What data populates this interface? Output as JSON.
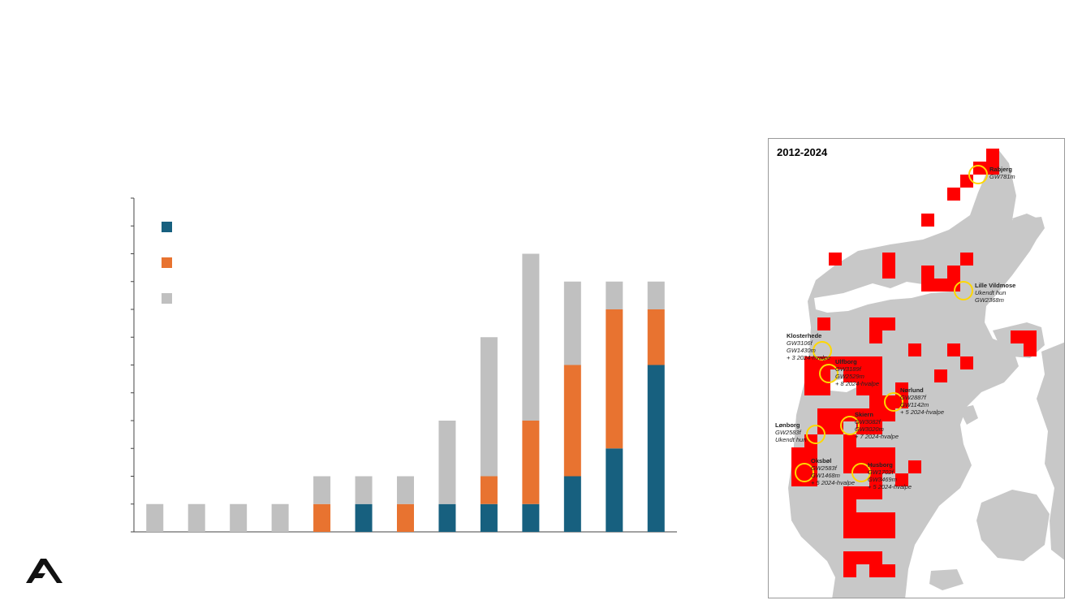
{
  "chart_data": {
    "type": "bar",
    "stacked": true,
    "categories": [
      "",
      "",
      "",
      "",
      "",
      "",
      "",
      "",
      "",
      "",
      "",
      "",
      ""
    ],
    "series": [
      {
        "color": "#17607f",
        "values": [
          0,
          0,
          0,
          0,
          0,
          1,
          0,
          1,
          1,
          1,
          2,
          3,
          6
        ]
      },
      {
        "color": "#e87330",
        "values": [
          0,
          0,
          0,
          0,
          1,
          0,
          1,
          0,
          1,
          3,
          4,
          5,
          2
        ]
      },
      {
        "color": "#c0c0c0",
        "values": [
          1,
          1,
          1,
          1,
          1,
          1,
          1,
          3,
          5,
          6,
          3,
          1,
          1
        ]
      }
    ],
    "ylim": [
      0,
      12
    ],
    "y_tick_count": 12,
    "grid": false,
    "legend": "top-left",
    "title": "",
    "xlabel": "",
    "ylabel": ""
  },
  "map": {
    "title": "2012-2024",
    "land_color": "#c8c8c8",
    "cell_color": "#ff0000",
    "marker_color": "#ffd700",
    "sites": [
      {
        "name": "Rabjerg",
        "lines": [
          "GW781m"
        ]
      },
      {
        "name": "Lille Vildmose",
        "lines": [
          "Ukendt hun",
          "GW2368m"
        ]
      },
      {
        "name": "Klosterhede",
        "lines": [
          "GW3106f",
          "GW1430m",
          "+ 3 2024-hvalpe"
        ]
      },
      {
        "name": "Ulfborg",
        "lines": [
          "GW3189f",
          "GW2529m",
          "+ 8 2024-hvalpe"
        ]
      },
      {
        "name": "Nørlund",
        "lines": [
          "GW2887f",
          "GW1142m",
          "+ 5 2024-hvalpe"
        ]
      },
      {
        "name": "Skiern",
        "lines": [
          "GW3082f",
          "GW3020m",
          "+ 7 2024-hvalpe"
        ]
      },
      {
        "name": "Lønborg",
        "lines": [
          "GW2583f",
          "Ukendt hun"
        ]
      },
      {
        "name": "Oksbøl",
        "lines": [
          "GW2583f",
          "GW1468m",
          "+ 5 2024-hvalpe"
        ]
      },
      {
        "name": "Husborg",
        "lines": [
          "GW1702f",
          "GW3469m",
          "+ 5 2024-hvalpe"
        ]
      }
    ]
  }
}
